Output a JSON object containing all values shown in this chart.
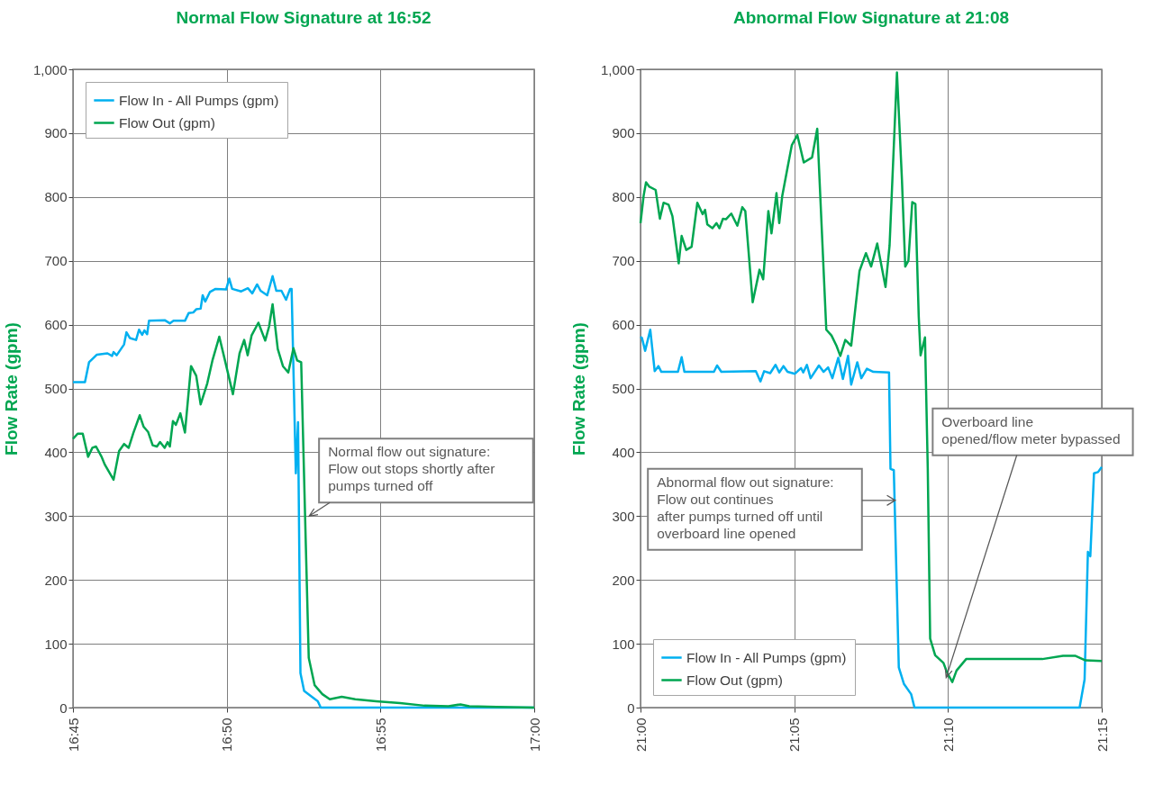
{
  "chart_data": [
    {
      "type": "line",
      "title": "Normal Flow Signature at 16:52",
      "ylabel": "Flow Rate (gpm)",
      "xlim": [
        16.75,
        17.0
      ],
      "xticks": [
        {
          "value": 16.75,
          "label": "16:45"
        },
        {
          "value": 16.8333,
          "label": "16:50"
        },
        {
          "value": 16.9167,
          "label": "16:55"
        },
        {
          "value": 17.0,
          "label": "17:00"
        }
      ],
      "ylim": [
        0,
        1000
      ],
      "yticks": [
        0,
        100,
        200,
        300,
        400,
        500,
        600,
        700,
        800,
        900,
        {
          "value": 1000,
          "label": "1,000"
        }
      ],
      "grid": true,
      "legend": "top left",
      "series": [
        {
          "name": "Flow In - All Pumps (gpm)",
          "color": "#00b0f0",
          "x": [
            16.75,
            16.7565,
            16.7587,
            16.763,
            16.7687,
            16.7712,
            16.772,
            16.7737,
            16.7777,
            16.779,
            16.7808,
            16.7842,
            16.7858,
            16.7875,
            16.7887,
            16.7902,
            16.7912,
            16.7997,
            16.8025,
            16.8045,
            16.8107,
            16.8127,
            16.8152,
            16.8168,
            16.8192,
            16.8203,
            16.8217,
            16.8242,
            16.8273,
            16.833,
            16.8347,
            16.8363,
            16.8412,
            16.8448,
            16.8472,
            16.8498,
            16.8517,
            16.8553,
            16.8582,
            16.8602,
            16.863,
            16.8655,
            16.8677,
            16.8685,
            16.8708,
            16.872,
            16.8733,
            16.8753,
            16.8785,
            16.8827,
            16.8843,
            17.0
          ],
          "values": [
            510,
            510,
            541,
            553,
            555,
            551,
            557,
            552,
            569,
            588,
            579,
            576,
            592,
            584,
            591,
            585,
            606,
            607,
            602,
            606,
            606,
            618,
            619,
            624,
            625,
            646,
            636,
            651,
            656,
            655,
            672,
            656,
            652,
            657,
            649,
            663,
            653,
            646,
            676,
            653,
            653,
            639,
            656,
            656,
            367,
            447,
            54,
            26,
            19,
            10,
            0,
            0
          ]
        },
        {
          "name": "Flow Out (gpm)",
          "color": "#00a651",
          "x": [
            16.75,
            16.7525,
            16.7553,
            16.7582,
            16.7605,
            16.7625,
            16.7655,
            16.7672,
            16.772,
            16.775,
            16.7777,
            16.7802,
            16.7827,
            16.7862,
            16.7883,
            16.7907,
            16.7932,
            16.7955,
            16.7972,
            16.7997,
            16.8013,
            16.8025,
            16.8042,
            16.8058,
            16.8082,
            16.8107,
            16.814,
            16.8168,
            16.8192,
            16.8228,
            16.8257,
            16.8293,
            16.8323,
            16.8367,
            16.8403,
            16.8428,
            16.8447,
            16.8468,
            16.8505,
            16.8542,
            16.8563,
            16.8582,
            16.861,
            16.8638,
            16.8667,
            16.8695,
            16.8715,
            16.8737,
            16.8762,
            16.8778,
            16.881,
            16.8852,
            16.8892,
            16.8957,
            16.903,
            16.9143,
            16.9273,
            16.9405,
            16.9535,
            16.96,
            16.9648,
            16.9795,
            17.0
          ],
          "values": [
            421,
            429,
            429,
            393,
            407,
            409,
            393,
            381,
            357,
            402,
            413,
            407,
            430,
            458,
            440,
            432,
            411,
            409,
            416,
            407,
            416,
            409,
            449,
            443,
            461,
            431,
            535,
            520,
            475,
            508,
            545,
            581,
            545,
            491,
            555,
            576,
            552,
            583,
            603,
            575,
            597,
            632,
            562,
            535,
            525,
            563,
            544,
            541,
            256,
            78,
            35,
            21,
            13,
            17,
            13,
            10,
            7,
            3,
            2,
            5,
            2,
            1,
            0
          ]
        }
      ],
      "annotations": [
        {
          "text": "Normal flow out signature:\nFlow out stops shortly after\npumps turned off",
          "x": 16.878,
          "y": 300
        }
      ]
    },
    {
      "type": "line",
      "title": "Abnormal Flow Signature at 21:08",
      "ylabel": "Flow Rate (gpm)",
      "xlim": [
        21.0,
        21.25
      ],
      "xticks": [
        {
          "value": 21.0,
          "label": "21:00"
        },
        {
          "value": 21.0833,
          "label": "21:05"
        },
        {
          "value": 21.1667,
          "label": "21:10"
        },
        {
          "value": 21.25,
          "label": "21:15"
        }
      ],
      "ylim": [
        0,
        1000
      ],
      "yticks": [
        0,
        100,
        200,
        300,
        400,
        500,
        600,
        700,
        800,
        900,
        {
          "value": 1000,
          "label": "1,000"
        }
      ],
      "grid": true,
      "legend": "bottom left",
      "series": [
        {
          "name": "Flow In - All Pumps (gpm)",
          "color": "#00b0f0",
          "x": [
            21.0,
            21.0008,
            21.0025,
            21.0053,
            21.0077,
            21.0097,
            21.0113,
            21.0203,
            21.0223,
            21.0238,
            21.0398,
            21.0415,
            21.0438,
            21.0625,
            21.065,
            21.067,
            21.0703,
            21.0732,
            21.0752,
            21.0775,
            21.0797,
            21.0837,
            21.087,
            21.0882,
            21.0902,
            21.0922,
            21.0967,
            21.0992,
            21.1017,
            21.104,
            21.1072,
            21.1097,
            21.1125,
            21.1142,
            21.1175,
            21.1197,
            21.1227,
            21.1262,
            21.1347,
            21.1355,
            21.1373,
            21.14,
            21.1428,
            21.1467,
            21.1485,
            21.238,
            21.2407,
            21.2425,
            21.2438,
            21.2458,
            21.248,
            21.25
          ],
          "values": [
            581,
            579,
            559,
            592,
            527,
            535,
            526,
            526,
            549,
            526,
            526,
            536,
            526,
            527,
            511,
            527,
            524,
            537,
            525,
            535,
            526,
            523,
            532,
            525,
            537,
            516,
            536,
            526,
            533,
            516,
            548,
            515,
            551,
            506,
            541,
            516,
            531,
            526,
            525,
            374,
            372,
            63,
            37,
            21,
            0,
            0,
            44,
            244,
            237,
            367,
            369,
            377
          ]
        },
        {
          "name": "Flow Out (gpm)",
          "color": "#00a651",
          "x": [
            21.0,
            21.0017,
            21.003,
            21.0048,
            21.0082,
            21.0105,
            21.0125,
            21.0152,
            21.0173,
            21.0207,
            21.0223,
            21.0248,
            21.0277,
            21.0308,
            21.0337,
            21.035,
            21.0362,
            21.039,
            21.0412,
            21.0428,
            21.0447,
            21.0463,
            21.0492,
            21.0525,
            21.0552,
            21.0568,
            21.0608,
            21.0645,
            21.0665,
            21.0693,
            21.071,
            21.0737,
            21.0752,
            21.0768,
            21.0797,
            21.082,
            21.085,
            21.0885,
            21.093,
            21.0958,
            21.1007,
            21.1035,
            21.1062,
            21.1083,
            21.111,
            21.1142,
            21.1187,
            21.1222,
            21.125,
            21.1283,
            21.1328,
            21.135,
            21.139,
            21.1417,
            21.1435,
            21.1452,
            21.1473,
            21.149,
            21.1508,
            21.1518,
            21.1542,
            21.1557,
            21.157,
            21.1597,
            21.1642,
            21.1663,
            21.169,
            21.1713,
            21.1765,
            21.1865,
            21.1977,
            21.2178,
            21.229,
            21.2358,
            21.2412,
            21.25
          ],
          "values": [
            759,
            802,
            823,
            816,
            811,
            766,
            791,
            788,
            770,
            696,
            739,
            717,
            722,
            791,
            773,
            780,
            757,
            751,
            759,
            751,
            766,
            765,
            774,
            755,
            784,
            778,
            635,
            686,
            671,
            778,
            743,
            806,
            759,
            801,
            846,
            881,
            897,
            854,
            862,
            907,
            592,
            583,
            567,
            551,
            576,
            567,
            684,
            712,
            691,
            727,
            659,
            724,
            995,
            827,
            691,
            700,
            792,
            789,
            613,
            552,
            580,
            374,
            108,
            82,
            70,
            54,
            40,
            58,
            76,
            76,
            76,
            76,
            81,
            81,
            74,
            73
          ]
        }
      ],
      "annotations": [
        "Abnormal flow out signature:\nFlow out continues\nafter pumps turned off until\noverboard line opened",
        {
          "text": "Overboard line\nopened/flow meter bypassed",
          "x": 21.1657,
          "y": 47
        }
      ]
    }
  ]
}
